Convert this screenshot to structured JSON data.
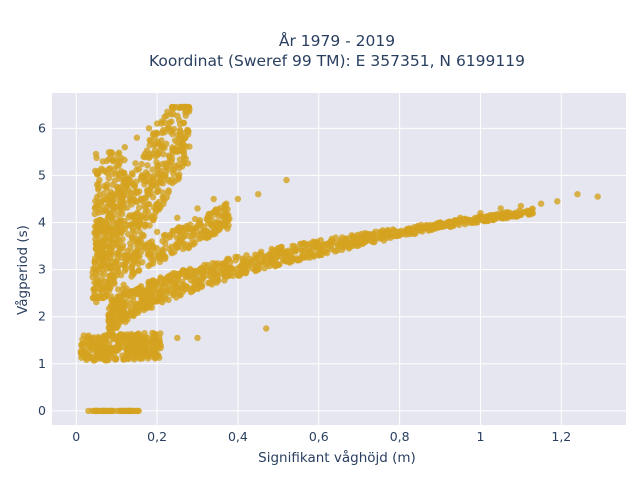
{
  "chart_data": {
    "type": "scatter",
    "title_line1": "År 1979 - 2019",
    "title_line2": "Koordinat (Sweref 99 TM): E 357351, N 6199119",
    "xlabel": "Signifikant våghöjd (m)",
    "ylabel": "Vågperiod (s)",
    "xlim": [
      -0.06,
      1.36
    ],
    "ylim": [
      -0.3,
      6.75
    ],
    "x_ticks": [
      0,
      0.2,
      0.4,
      0.6,
      0.8,
      1,
      1.2
    ],
    "x_tick_labels": [
      "0",
      "0,2",
      "0,4",
      "0,6",
      "0,8",
      "1",
      "1,2"
    ],
    "y_ticks": [
      0,
      1,
      2,
      3,
      4,
      5,
      6
    ],
    "y_tick_labels": [
      "0",
      "1",
      "2",
      "3",
      "4",
      "5",
      "6"
    ],
    "grid": true,
    "marker_color": "#d4a21f",
    "plot_bg": "#e5e6ef",
    "series": [
      {
        "values": [
          [
            0.03,
            0
          ],
          [
            0.05,
            0
          ],
          [
            0.07,
            0
          ],
          [
            0.09,
            0
          ],
          [
            0.11,
            0
          ],
          [
            0.13,
            0
          ],
          [
            0.15,
            0
          ],
          [
            0.02,
            1.25
          ],
          [
            0.04,
            1.3
          ],
          [
            0.06,
            1.2
          ],
          [
            0.08,
            1.15
          ],
          [
            0.1,
            1.3
          ],
          [
            0.12,
            1.45
          ],
          [
            0.15,
            1.5
          ],
          [
            0.2,
            1.5
          ],
          [
            0.25,
            1.55
          ],
          [
            0.3,
            1.55
          ],
          [
            0.05,
            2.7
          ],
          [
            0.07,
            3.5
          ],
          [
            0.08,
            4.2
          ],
          [
            0.09,
            4.8
          ],
          [
            0.1,
            5.2
          ],
          [
            0.12,
            5.6
          ],
          [
            0.15,
            5.8
          ],
          [
            0.18,
            6.0
          ],
          [
            0.2,
            6.1
          ],
          [
            0.24,
            6.3
          ],
          [
            0.28,
            6.4
          ],
          [
            0.12,
            3.3
          ],
          [
            0.16,
            3.6
          ],
          [
            0.2,
            3.8
          ],
          [
            0.25,
            4.1
          ],
          [
            0.3,
            4.3
          ],
          [
            0.34,
            4.5
          ],
          [
            0.4,
            4.5
          ],
          [
            0.1,
            2.0
          ],
          [
            0.15,
            2.2
          ],
          [
            0.2,
            2.4
          ],
          [
            0.25,
            2.5
          ],
          [
            0.3,
            2.6
          ],
          [
            0.35,
            2.8
          ],
          [
            0.4,
            2.9
          ],
          [
            0.45,
            3.0
          ],
          [
            0.5,
            3.1
          ],
          [
            0.55,
            3.2
          ],
          [
            0.6,
            3.35
          ],
          [
            0.65,
            3.5
          ],
          [
            0.7,
            3.6
          ],
          [
            0.75,
            3.7
          ],
          [
            0.8,
            3.8
          ],
          [
            0.85,
            3.9
          ],
          [
            0.9,
            4.0
          ],
          [
            0.95,
            4.1
          ],
          [
            1.0,
            4.2
          ],
          [
            1.05,
            4.3
          ],
          [
            1.1,
            4.35
          ],
          [
            1.15,
            4.4
          ],
          [
            1.19,
            4.45
          ],
          [
            1.24,
            4.6
          ],
          [
            1.29,
            4.55
          ],
          [
            0.47,
            1.75
          ],
          [
            0.45,
            4.6
          ],
          [
            0.52,
            4.9
          ]
        ]
      }
    ]
  }
}
